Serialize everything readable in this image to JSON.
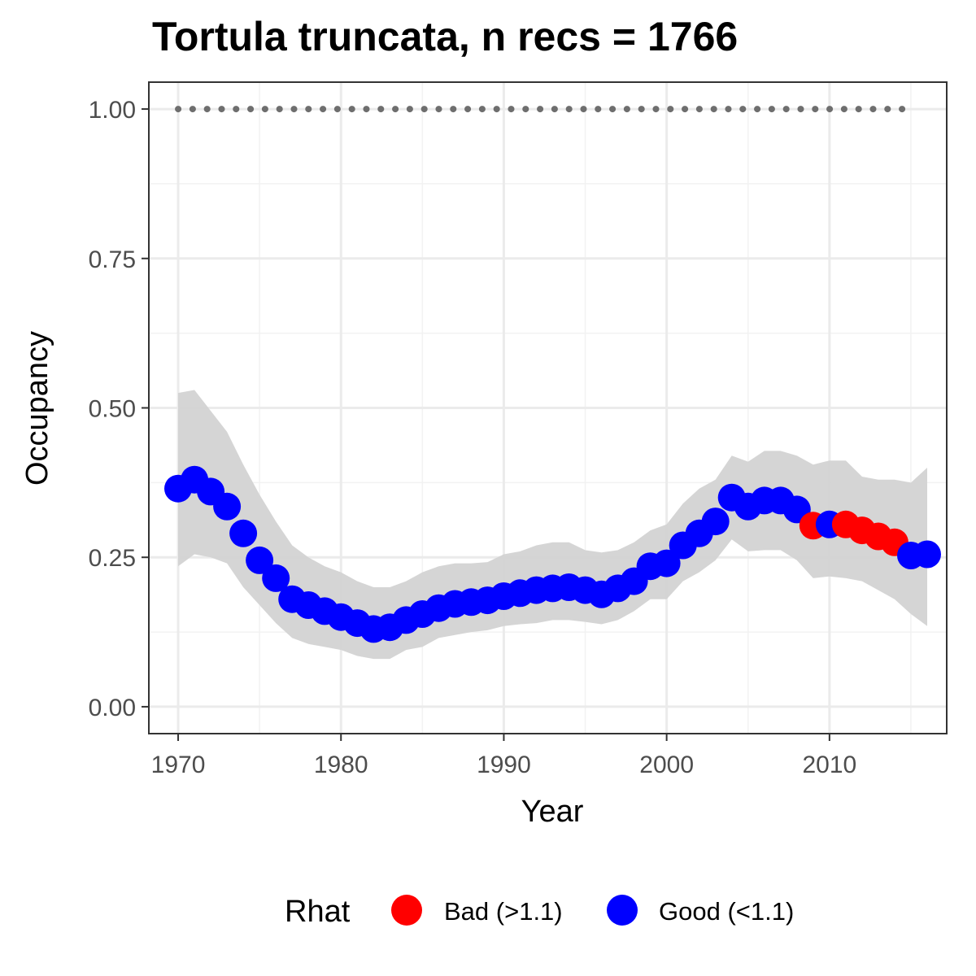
{
  "chart_data": {
    "type": "line",
    "title": "Tortula truncata, n recs = 1766",
    "xlabel": "Year",
    "ylabel": "Occupancy",
    "xlim": [
      1968.2,
      2017.2
    ],
    "ylim": [
      -0.045,
      1.045
    ],
    "x_ticks": [
      1970,
      1980,
      1990,
      2000,
      2010
    ],
    "x_tick_labels": [
      "1970",
      "1980",
      "1990",
      "2000",
      "2010"
    ],
    "y_ticks": [
      0,
      0.25,
      0.5,
      0.75,
      1.0
    ],
    "y_tick_labels": [
      "0.00",
      "0.25",
      "0.50",
      "0.75",
      "1.00"
    ],
    "grid": true,
    "legend": {
      "title": "Rhat",
      "position": "bottom",
      "items": [
        {
          "label": "Bad (>1.1)",
          "color": "#ff0000"
        },
        {
          "label": "Good (<1.1)",
          "color": "#0000ff"
        }
      ]
    },
    "colors": {
      "good": "#0000ff",
      "bad": "#ff0000",
      "ribbon": "#d3d3d3",
      "reference": "#6e6e6e"
    },
    "reference_line": {
      "y": 1.0,
      "x_from": 1970,
      "x_to": 2015,
      "style": "dotted"
    },
    "x": [
      1970,
      1971,
      1972,
      1973,
      1974,
      1975,
      1976,
      1977,
      1978,
      1979,
      1980,
      1981,
      1982,
      1983,
      1984,
      1985,
      1986,
      1987,
      1988,
      1989,
      1990,
      1991,
      1992,
      1993,
      1994,
      1995,
      1996,
      1997,
      1998,
      1999,
      2000,
      2001,
      2002,
      2003,
      2004,
      2005,
      2006,
      2007,
      2008,
      2009,
      2010,
      2011,
      2012,
      2013,
      2014,
      2015,
      2016
    ],
    "occupancy": [
      0.365,
      0.38,
      0.36,
      0.335,
      0.29,
      0.245,
      0.215,
      0.18,
      0.17,
      0.16,
      0.15,
      0.14,
      0.13,
      0.133,
      0.145,
      0.155,
      0.165,
      0.172,
      0.175,
      0.178,
      0.185,
      0.19,
      0.195,
      0.198,
      0.2,
      0.195,
      0.188,
      0.198,
      0.21,
      0.235,
      0.24,
      0.27,
      0.29,
      0.31,
      0.35,
      0.335,
      0.345,
      0.345,
      0.33,
      0.303,
      0.305,
      0.305,
      0.295,
      0.285,
      0.275,
      0.253,
      0.255
    ],
    "lower": [
      0.235,
      0.255,
      0.25,
      0.24,
      0.2,
      0.17,
      0.14,
      0.115,
      0.105,
      0.1,
      0.095,
      0.085,
      0.08,
      0.08,
      0.095,
      0.1,
      0.115,
      0.12,
      0.125,
      0.128,
      0.135,
      0.138,
      0.14,
      0.145,
      0.145,
      0.142,
      0.138,
      0.145,
      0.16,
      0.18,
      0.18,
      0.21,
      0.225,
      0.245,
      0.28,
      0.26,
      0.262,
      0.262,
      0.245,
      0.215,
      0.218,
      0.215,
      0.21,
      0.195,
      0.18,
      0.155,
      0.135
    ],
    "upper": [
      0.525,
      0.53,
      0.495,
      0.46,
      0.405,
      0.355,
      0.31,
      0.27,
      0.25,
      0.235,
      0.225,
      0.21,
      0.2,
      0.2,
      0.21,
      0.225,
      0.235,
      0.24,
      0.24,
      0.242,
      0.255,
      0.26,
      0.27,
      0.275,
      0.275,
      0.262,
      0.258,
      0.262,
      0.275,
      0.295,
      0.305,
      0.34,
      0.365,
      0.38,
      0.42,
      0.41,
      0.428,
      0.428,
      0.42,
      0.405,
      0.412,
      0.412,
      0.385,
      0.38,
      0.38,
      0.375,
      0.4
    ],
    "rhat_status": [
      "Good",
      "Good",
      "Good",
      "Good",
      "Good",
      "Good",
      "Good",
      "Good",
      "Good",
      "Good",
      "Good",
      "Good",
      "Good",
      "Good",
      "Good",
      "Good",
      "Good",
      "Good",
      "Good",
      "Good",
      "Good",
      "Good",
      "Good",
      "Good",
      "Good",
      "Good",
      "Good",
      "Good",
      "Good",
      "Good",
      "Good",
      "Good",
      "Good",
      "Good",
      "Good",
      "Good",
      "Good",
      "Good",
      "Good",
      "Bad",
      "Good",
      "Bad",
      "Bad",
      "Bad",
      "Bad",
      "Good",
      "Good"
    ]
  }
}
